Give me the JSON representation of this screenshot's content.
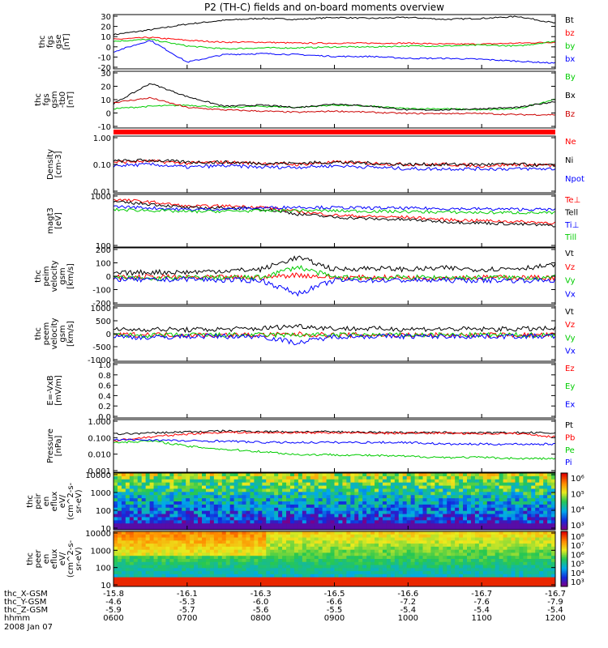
{
  "title": "P2 (TH-C) fields and on-board moments overview",
  "chart_data": [
    {
      "type": "line",
      "ylabel": [
        "thc",
        "fgs",
        "gse",
        "[nT]"
      ],
      "yticks": [
        "30",
        "20",
        "10",
        "0",
        "-10",
        "-20"
      ],
      "ylim": [
        -25,
        32
      ],
      "series": [
        {
          "name": "Bt",
          "color": "#000000",
          "values": [
            11,
            16,
            22,
            26,
            28,
            27,
            29,
            28,
            29,
            27,
            28,
            30,
            23
          ]
        },
        {
          "name": "bz",
          "color": "#ff0000",
          "values": [
            6,
            8,
            5,
            3,
            3,
            2,
            2,
            2,
            2,
            1,
            1,
            2,
            3
          ]
        },
        {
          "name": "by",
          "color": "#00cc00",
          "values": [
            4,
            6,
            -1,
            -4,
            -3,
            -3,
            -2,
            -2,
            -1,
            -1,
            0,
            -1,
            4
          ]
        },
        {
          "name": "bx",
          "color": "#0000ff",
          "values": [
            -7,
            5,
            -18,
            -10,
            -9,
            -10,
            -12,
            -12,
            -14,
            -14,
            -15,
            -17,
            -19
          ]
        }
      ]
    },
    {
      "type": "line",
      "ylabel": [
        "thc",
        "fgs",
        "gsm",
        "-tb0",
        "[nT]"
      ],
      "yticks": [
        "30",
        "20",
        "10",
        "0",
        "-10"
      ],
      "ylim": [
        -15,
        32
      ],
      "series": [
        {
          "name": "By",
          "color": "#00cc00",
          "values": [
            1,
            3,
            4,
            2,
            3,
            2,
            4,
            3,
            1,
            1,
            0,
            1,
            9
          ]
        },
        {
          "name": "Bx",
          "color": "#000000",
          "values": [
            5,
            22,
            11,
            3,
            4,
            2,
            5,
            3,
            0,
            0,
            1,
            2,
            7
          ]
        },
        {
          "name": "Bz",
          "color": "#cc0000",
          "values": [
            6,
            10,
            2,
            0,
            -1,
            -2,
            -1,
            -2,
            -3,
            -3,
            -3,
            -4,
            -4
          ]
        }
      ]
    },
    {
      "type": "line",
      "scale": "log",
      "ylabel": [
        "Density",
        "[cm-3]"
      ],
      "yticks": [
        "1.00",
        "0.10",
        "0.01"
      ],
      "ylim": [
        0.01,
        1.0
      ],
      "series": [
        {
          "name": "Ne",
          "color": "#ff0000",
          "values": [
            0.12,
            0.13,
            0.11,
            0.12,
            0.11,
            0.1,
            0.12,
            0.11,
            0.1,
            0.1,
            0.09,
            0.1,
            0.09
          ]
        },
        {
          "name": "Ni",
          "color": "#000000",
          "values": [
            0.13,
            0.14,
            0.12,
            0.12,
            0.11,
            0.11,
            0.12,
            0.11,
            0.1,
            0.1,
            0.1,
            0.1,
            0.09
          ]
        },
        {
          "name": "Npot",
          "color": "#0000ff",
          "values": [
            0.09,
            0.1,
            0.08,
            0.09,
            0.08,
            0.08,
            0.09,
            0.08,
            0.07,
            0.07,
            0.07,
            0.07,
            0.07
          ]
        }
      ]
    },
    {
      "type": "line",
      "scale": "log",
      "ylabel": [
        "magt3",
        "[eV]"
      ],
      "yticks": [
        "1000",
        "100"
      ],
      "ylim": [
        100,
        12000
      ],
      "series": [
        {
          "name": "Te⊥",
          "color": "#ff0000",
          "values": [
            7500,
            6000,
            4000,
            4200,
            3800,
            2500,
            1800,
            1600,
            1500,
            1200,
            1100,
            1000,
            900
          ]
        },
        {
          "name": "Tell",
          "color": "#000000",
          "values": [
            6000,
            5000,
            3500,
            3500,
            3200,
            2000,
            1500,
            1300,
            1200,
            1000,
            900,
            800,
            700
          ]
        },
        {
          "name": "Ti⊥",
          "color": "#0000ff",
          "values": [
            4000,
            3500,
            3000,
            3200,
            3500,
            3800,
            3600,
            3500,
            3400,
            3300,
            3200,
            3100,
            3000
          ]
        },
        {
          "name": "Till",
          "color": "#00cc00",
          "values": [
            3000,
            2800,
            2500,
            2600,
            2700,
            2800,
            2700,
            2600,
            2500,
            2400,
            2300,
            2300,
            2200
          ]
        }
      ]
    },
    {
      "type": "line",
      "ylabel": [
        "thc",
        "peim",
        "velocity",
        "gsm",
        "[km/s]"
      ],
      "yticks": [
        "200",
        "100",
        "0",
        "-100",
        "-200"
      ],
      "ylim": [
        -200,
        220
      ],
      "series": [
        {
          "name": "Vt",
          "color": "#000000",
          "values": [
            30,
            40,
            40,
            50,
            60,
            150,
            60,
            70,
            60,
            70,
            60,
            70,
            90
          ]
        },
        {
          "name": "Vz",
          "color": "#ff0000",
          "values": [
            0,
            5,
            0,
            0,
            0,
            20,
            0,
            0,
            0,
            0,
            0,
            0,
            0
          ]
        },
        {
          "name": "Vy",
          "color": "#00cc00",
          "values": [
            0,
            -10,
            0,
            0,
            0,
            80,
            0,
            0,
            0,
            0,
            0,
            0,
            0
          ]
        },
        {
          "name": "Vx",
          "color": "#0000ff",
          "values": [
            -10,
            -20,
            -10,
            -20,
            -20,
            -120,
            -20,
            -20,
            -20,
            -20,
            -20,
            -20,
            -20
          ]
        }
      ]
    },
    {
      "type": "line",
      "ylabel": [
        "thc",
        "peem",
        "velocity",
        "gsm",
        "[km/s]"
      ],
      "yticks": [
        "1000",
        "500",
        "0",
        "-500",
        "-1000"
      ],
      "ylim": [
        -1000,
        1100
      ],
      "series": [
        {
          "name": "Vt",
          "color": "#000000",
          "values": [
            200,
            220,
            200,
            220,
            250,
            350,
            250,
            240,
            230,
            230,
            220,
            230,
            240
          ]
        },
        {
          "name": "Vz",
          "color": "#ff0000",
          "values": [
            0,
            20,
            0,
            0,
            0,
            30,
            0,
            0,
            0,
            0,
            0,
            0,
            0
          ]
        },
        {
          "name": "Vy",
          "color": "#00cc00",
          "values": [
            0,
            -20,
            0,
            0,
            0,
            0,
            0,
            0,
            0,
            0,
            0,
            0,
            0
          ]
        },
        {
          "name": "Vx",
          "color": "#0000ff",
          "values": [
            -50,
            -100,
            -50,
            -50,
            -50,
            -300,
            -50,
            -50,
            -50,
            -50,
            -50,
            -50,
            -50
          ]
        }
      ]
    },
    {
      "type": "line",
      "ylabel": [
        "E=-VxB",
        "[mV/m]"
      ],
      "yticks": [
        "1.0",
        "0.8",
        "0.6",
        "0.4",
        "0.2",
        "0.0"
      ],
      "ylim": [
        0,
        1.0
      ],
      "series": [
        {
          "name": "Ez",
          "color": "#ff0000",
          "values": []
        },
        {
          "name": "Ey",
          "color": "#00cc00",
          "values": []
        },
        {
          "name": "Ex",
          "color": "#0000ff",
          "values": []
        }
      ]
    },
    {
      "type": "line",
      "scale": "log",
      "ylabel": [
        "Pressure",
        "[nPa]"
      ],
      "yticks": [
        "1.000",
        "0.100",
        "0.010",
        "0.001"
      ],
      "ylim": [
        0.001,
        1.0
      ],
      "series": [
        {
          "name": "Pt",
          "color": "#000000",
          "values": [
            0.15,
            0.17,
            0.2,
            0.22,
            0.21,
            0.2,
            0.2,
            0.19,
            0.18,
            0.18,
            0.17,
            0.18,
            0.17
          ]
        },
        {
          "name": "Pb",
          "color": "#ff0000",
          "values": [
            0.06,
            0.1,
            0.15,
            0.19,
            0.18,
            0.18,
            0.18,
            0.17,
            0.17,
            0.17,
            0.16,
            0.16,
            0.1
          ]
        },
        {
          "name": "Pe",
          "color": "#00cc00",
          "values": [
            0.05,
            0.06,
            0.03,
            0.02,
            0.015,
            0.01,
            0.01,
            0.009,
            0.008,
            0.007,
            0.007,
            0.006,
            0.006
          ]
        },
        {
          "name": "Pi",
          "color": "#0000ff",
          "values": [
            0.07,
            0.07,
            0.06,
            0.06,
            0.05,
            0.05,
            0.05,
            0.05,
            0.05,
            0.04,
            0.04,
            0.04,
            0.04
          ]
        }
      ]
    },
    {
      "type": "heatmap",
      "ylabel": [
        "thc",
        "peir",
        "en",
        "eflux",
        "eV/",
        "(cm^2-s-",
        "sr-eV)"
      ],
      "yticks": [
        "10000",
        "1000",
        "100",
        "10"
      ],
      "colorbar": {
        "min_exp": 3,
        "max_exp": 6,
        "labels": [
          "10⁶",
          "10⁵",
          "10⁴",
          "10³"
        ]
      }
    },
    {
      "type": "heatmap",
      "ylabel": [
        "thc",
        "peer",
        "en",
        "eflux",
        "eV/",
        "(cm^2-s-",
        "sr-eV)"
      ],
      "yticks": [
        "10000",
        "1000",
        "100",
        "10"
      ],
      "colorbar": {
        "min_exp": 3,
        "max_exp": 8,
        "labels": [
          "10⁸",
          "10⁷",
          "10⁶",
          "10⁵",
          "10⁴",
          "10³"
        ]
      }
    }
  ],
  "xaxis": {
    "rows": [
      {
        "label": "thc_X-GSM",
        "values": [
          "-15.8",
          "-16.1",
          "-16.3",
          "-16.5",
          "-16.6",
          "-16.7",
          "-16.7"
        ]
      },
      {
        "label": "thc_Y-GSM",
        "values": [
          "-4.6",
          "-5.3",
          "-6.0",
          "-6.6",
          "-7.2",
          "-7.6",
          "-7.9"
        ]
      },
      {
        "label": "thc_Z-GSM",
        "values": [
          "-5.9",
          "-5.7",
          "-5.6",
          "-5.5",
          "-5.4",
          "-5.4",
          "-5.4"
        ]
      },
      {
        "label": "hhmm",
        "values": [
          "0600",
          "0700",
          "0800",
          "0900",
          "1000",
          "1100",
          "1200"
        ]
      }
    ],
    "date": "2008 Jan 07"
  }
}
